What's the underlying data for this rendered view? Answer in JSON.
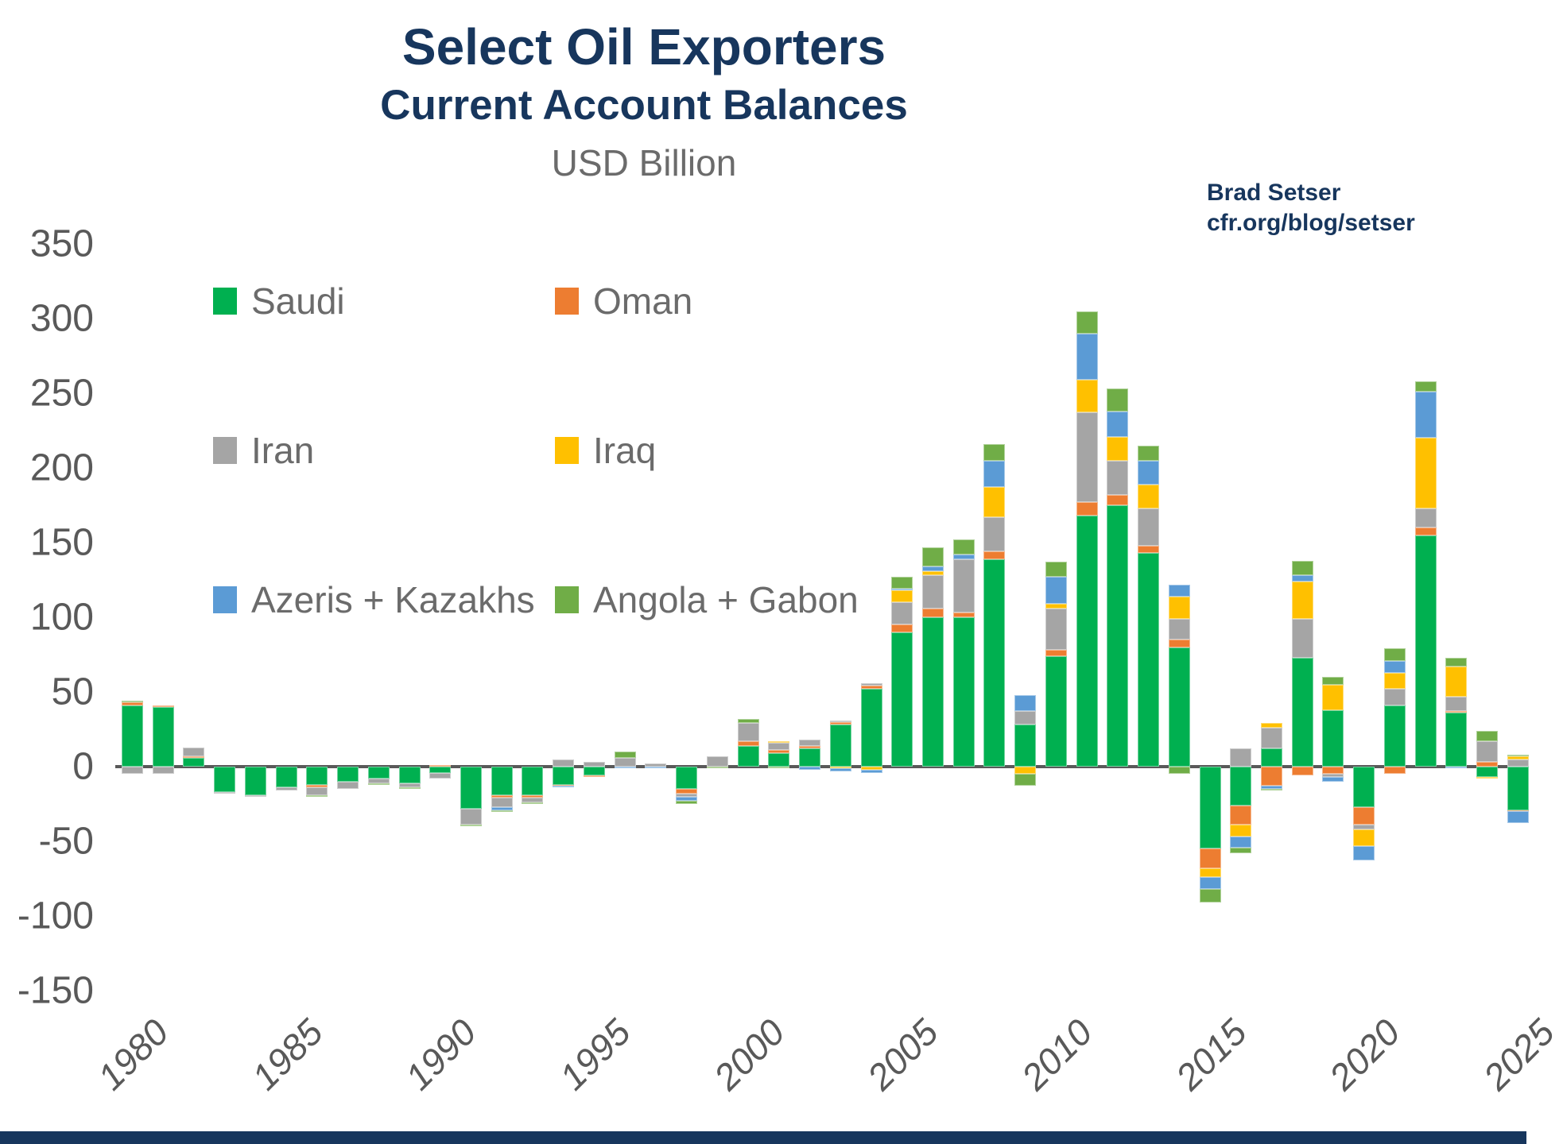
{
  "page": {
    "background": "#FFFFFF",
    "footer_bar_color": "#17365D"
  },
  "header": {
    "title": "Select Oil Exporters",
    "subtitle": "Current Account Balances",
    "units": "USD Billion",
    "title_color": "#17365D",
    "units_color": "#6b6b6b"
  },
  "attribution": {
    "line1": "Brad Setser",
    "line2": "cfr.org/blog/setser",
    "color": "#17365D"
  },
  "chart_data": {
    "type": "bar",
    "stacked": true,
    "title": "Select Oil Exporters",
    "subtitle": "Current Account Balances",
    "ylabel": "USD Billion",
    "xlabel": "",
    "grid": false,
    "ylim": [
      -150,
      350
    ],
    "yticks": [
      350,
      300,
      250,
      200,
      150,
      100,
      50,
      0,
      -50,
      -100,
      -150
    ],
    "xticks": [
      1980,
      1985,
      1990,
      1995,
      2000,
      2005,
      2010,
      2015,
      2020,
      2025
    ],
    "legend_position": "upper-left-two-columns",
    "axis_color": "#595959",
    "categories": [
      1980,
      1981,
      1982,
      1983,
      1984,
      1985,
      1986,
      1987,
      1988,
      1989,
      1990,
      1991,
      1992,
      1993,
      1994,
      1995,
      1996,
      1997,
      1998,
      1999,
      2000,
      2001,
      2002,
      2003,
      2004,
      2005,
      2006,
      2007,
      2008,
      2009,
      2010,
      2011,
      2012,
      2013,
      2014,
      2015,
      2016,
      2017,
      2018,
      2019,
      2020,
      2021,
      2022,
      2023,
      2024,
      2025
    ],
    "series": [
      {
        "name": "Saudi",
        "color": "#00B050",
        "values": [
          41,
          40,
          6,
          -17,
          -19,
          -14,
          -12,
          -10,
          -8,
          -11,
          -4,
          -28,
          -19,
          -19,
          -12,
          -6,
          0,
          0,
          -15,
          0,
          14,
          9,
          12,
          28,
          52,
          90,
          100,
          100,
          139,
          28,
          74,
          168,
          175,
          143,
          80,
          -55,
          -26,
          12,
          73,
          38,
          -27,
          41,
          155,
          36,
          -7,
          -29
        ]
      },
      {
        "name": "Oman",
        "color": "#ED7D31",
        "values": [
          2,
          1,
          1,
          0,
          0,
          0,
          -2,
          0,
          0,
          0,
          1,
          0,
          -2,
          -2,
          -1,
          -1,
          0,
          0,
          -3,
          0,
          3,
          2,
          2,
          2,
          2,
          5,
          6,
          3,
          5,
          0,
          4,
          9,
          7,
          5,
          5,
          -13,
          -13,
          -13,
          -6,
          -5,
          -12,
          -5,
          5,
          1,
          3,
          -1
        ]
      },
      {
        "name": "Iran",
        "color": "#A5A5A5",
        "values": [
          -5,
          -5,
          6,
          -1,
          -1,
          -2,
          -5,
          -5,
          -3,
          -3,
          -4,
          -11,
          -6,
          -3,
          5,
          3,
          6,
          2,
          -2,
          7,
          12,
          5,
          4,
          1,
          2,
          15,
          22,
          36,
          23,
          9,
          28,
          60,
          23,
          25,
          14,
          0,
          12,
          14,
          26,
          -2,
          -3,
          11,
          13,
          10,
          14,
          5
        ]
      },
      {
        "name": "Iraq",
        "color": "#FFC000",
        "values": [
          0,
          0,
          0,
          0,
          0,
          0,
          0,
          0,
          0,
          0,
          0,
          0,
          0,
          0,
          0,
          0,
          0,
          0,
          0,
          0,
          0,
          1,
          0,
          -1,
          -2,
          8,
          3,
          0,
          20,
          -5,
          3,
          22,
          16,
          16,
          15,
          -6,
          -8,
          3,
          25,
          17,
          -11,
          11,
          47,
          20,
          -1,
          2
        ]
      },
      {
        "name": "Azeris + Kazakhs",
        "color": "#5B9BD5",
        "values": [
          0,
          0,
          0,
          0,
          0,
          0,
          0,
          0,
          0,
          0,
          0,
          0,
          -2,
          0,
          -1,
          0,
          -1,
          -1,
          -3,
          0,
          0,
          0,
          -2,
          -2,
          -2,
          1,
          3,
          3,
          18,
          11,
          18,
          31,
          17,
          16,
          8,
          -8,
          -7,
          -2,
          4,
          -3,
          -10,
          8,
          31,
          -1,
          0,
          -8
        ]
      },
      {
        "name": "Angola + Gabon",
        "color": "#70AD47",
        "values": [
          1,
          0,
          0,
          0,
          0,
          0,
          -1,
          0,
          -1,
          -1,
          0,
          -1,
          -1,
          -1,
          0,
          0,
          4,
          0,
          -2,
          -1,
          3,
          -1,
          0,
          0,
          0,
          8,
          13,
          10,
          11,
          -8,
          10,
          15,
          15,
          10,
          -5,
          -9,
          -4,
          -1,
          10,
          5,
          0,
          8,
          7,
          6,
          7,
          1
        ]
      }
    ]
  }
}
